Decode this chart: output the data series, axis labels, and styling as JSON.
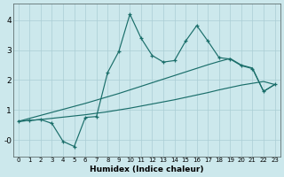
{
  "xlabel": "Humidex (Indice chaleur)",
  "background_color": "#cce8ec",
  "grid_color": "#aacdd4",
  "line_color": "#1a6e6a",
  "xlim": [
    -0.5,
    23.5
  ],
  "ylim": [
    -0.55,
    4.55
  ],
  "xticks": [
    0,
    1,
    2,
    3,
    4,
    5,
    6,
    7,
    8,
    9,
    10,
    11,
    12,
    13,
    14,
    15,
    16,
    17,
    18,
    19,
    20,
    21,
    22,
    23
  ],
  "yticks": [
    0,
    1,
    2,
    3,
    4
  ],
  "ytick_labels": [
    "-0",
    "1",
    "2",
    "3",
    "4"
  ],
  "line1_x": [
    0,
    1,
    2,
    3,
    4,
    5,
    6,
    7,
    8,
    9,
    10,
    11,
    12,
    13,
    14,
    15,
    16,
    17,
    18,
    19,
    20,
    21,
    22,
    23
  ],
  "line1_y": [
    0.62,
    0.65,
    0.68,
    0.72,
    0.76,
    0.8,
    0.84,
    0.89,
    0.94,
    1.0,
    1.06,
    1.13,
    1.2,
    1.27,
    1.34,
    1.42,
    1.5,
    1.58,
    1.67,
    1.75,
    1.83,
    1.89,
    1.95,
    1.85
  ],
  "line2_x": [
    0,
    1,
    2,
    3,
    4,
    5,
    6,
    7,
    8,
    9,
    10,
    11,
    12,
    13,
    14,
    15,
    16,
    17,
    18,
    19,
    20,
    21,
    22,
    23
  ],
  "line2_y": [
    0.62,
    0.72,
    0.82,
    0.92,
    1.02,
    1.12,
    1.22,
    1.33,
    1.44,
    1.55,
    1.67,
    1.79,
    1.91,
    2.03,
    2.15,
    2.27,
    2.39,
    2.51,
    2.62,
    2.72,
    2.5,
    2.4,
    1.62,
    1.85
  ],
  "line3_x": [
    0,
    1,
    2,
    3,
    4,
    5,
    6,
    7,
    8,
    9,
    10,
    11,
    12,
    13,
    14,
    15,
    16,
    17,
    18,
    19,
    20,
    21,
    22,
    23
  ],
  "line3_y": [
    0.62,
    0.65,
    0.68,
    0.55,
    -0.05,
    -0.22,
    0.75,
    0.78,
    2.25,
    2.95,
    4.2,
    3.4,
    2.82,
    2.6,
    2.65,
    3.3,
    3.82,
    3.3,
    2.75,
    2.7,
    2.48,
    2.38,
    1.62,
    1.85
  ]
}
